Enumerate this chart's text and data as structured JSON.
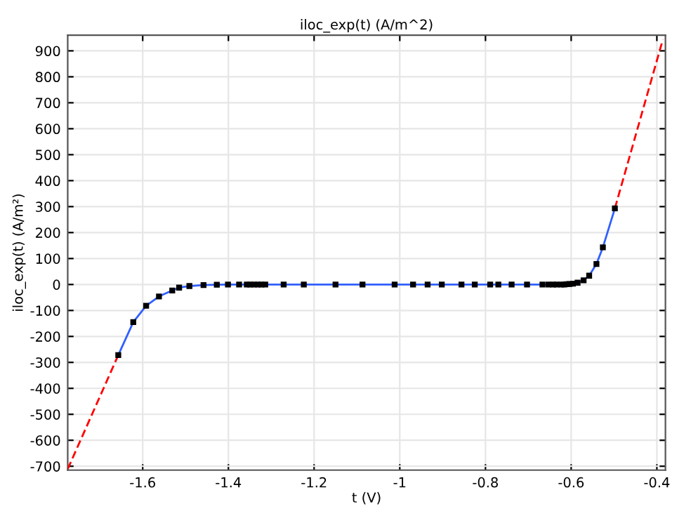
{
  "chart_data": {
    "type": "line",
    "title": "iloc_exp(t) (A/m^2)",
    "xlabel": "t (V)",
    "ylabel": "iloc_exp(t) (A/m²)",
    "xlim": [
      -1.775,
      -0.38
    ],
    "ylim": [
      -715,
      960
    ],
    "xticks": [
      -1.6,
      -1.4,
      -1.2,
      -1,
      -0.8,
      -0.6,
      -0.4
    ],
    "yticks": [
      -700,
      -600,
      -500,
      -400,
      -300,
      -200,
      -100,
      0,
      100,
      200,
      300,
      400,
      500,
      600,
      700,
      800,
      900
    ],
    "grid": true,
    "series": [
      {
        "color": "#ff0000",
        "line_style": "dashed",
        "x": [
          -1.775,
          -1.657
        ],
        "values": [
          -711,
          -272
        ]
      },
      {
        "color": "#ff0000",
        "line_style": "dashed",
        "x": [
          -0.498,
          -0.386
        ],
        "values": [
          293,
          944
        ]
      },
      {
        "color": "#3060ff",
        "line_style": "solid",
        "marker": "square",
        "x": [
          -1.657,
          -1.622,
          -1.592,
          -1.562,
          -1.531,
          -1.515,
          -1.491,
          -1.458,
          -1.427,
          -1.401,
          -1.375,
          -1.357,
          -1.349,
          -1.34,
          -1.331,
          -1.323,
          -1.314,
          -1.271,
          -1.224,
          -1.15,
          -1.087,
          -1.012,
          -0.969,
          -0.935,
          -0.902,
          -0.856,
          -0.825,
          -0.789,
          -0.77,
          -0.739,
          -0.703,
          -0.667,
          -0.653,
          -0.642,
          -0.634,
          -0.623,
          -0.616,
          -0.61,
          -0.604,
          -0.596,
          -0.585,
          -0.571,
          -0.558,
          -0.541,
          -0.526,
          -0.498
        ],
        "values": [
          -272,
          -145,
          -82,
          -46,
          -23,
          -12,
          -6,
          -2,
          -1,
          0,
          0,
          0,
          0,
          0,
          0,
          0,
          0,
          0,
          0,
          0,
          0,
          0,
          0,
          0,
          0,
          0,
          0,
          0,
          0,
          0,
          0,
          0,
          0,
          0,
          0,
          0,
          0,
          1,
          2,
          3,
          7,
          16,
          34,
          79,
          143,
          293
        ]
      }
    ]
  }
}
